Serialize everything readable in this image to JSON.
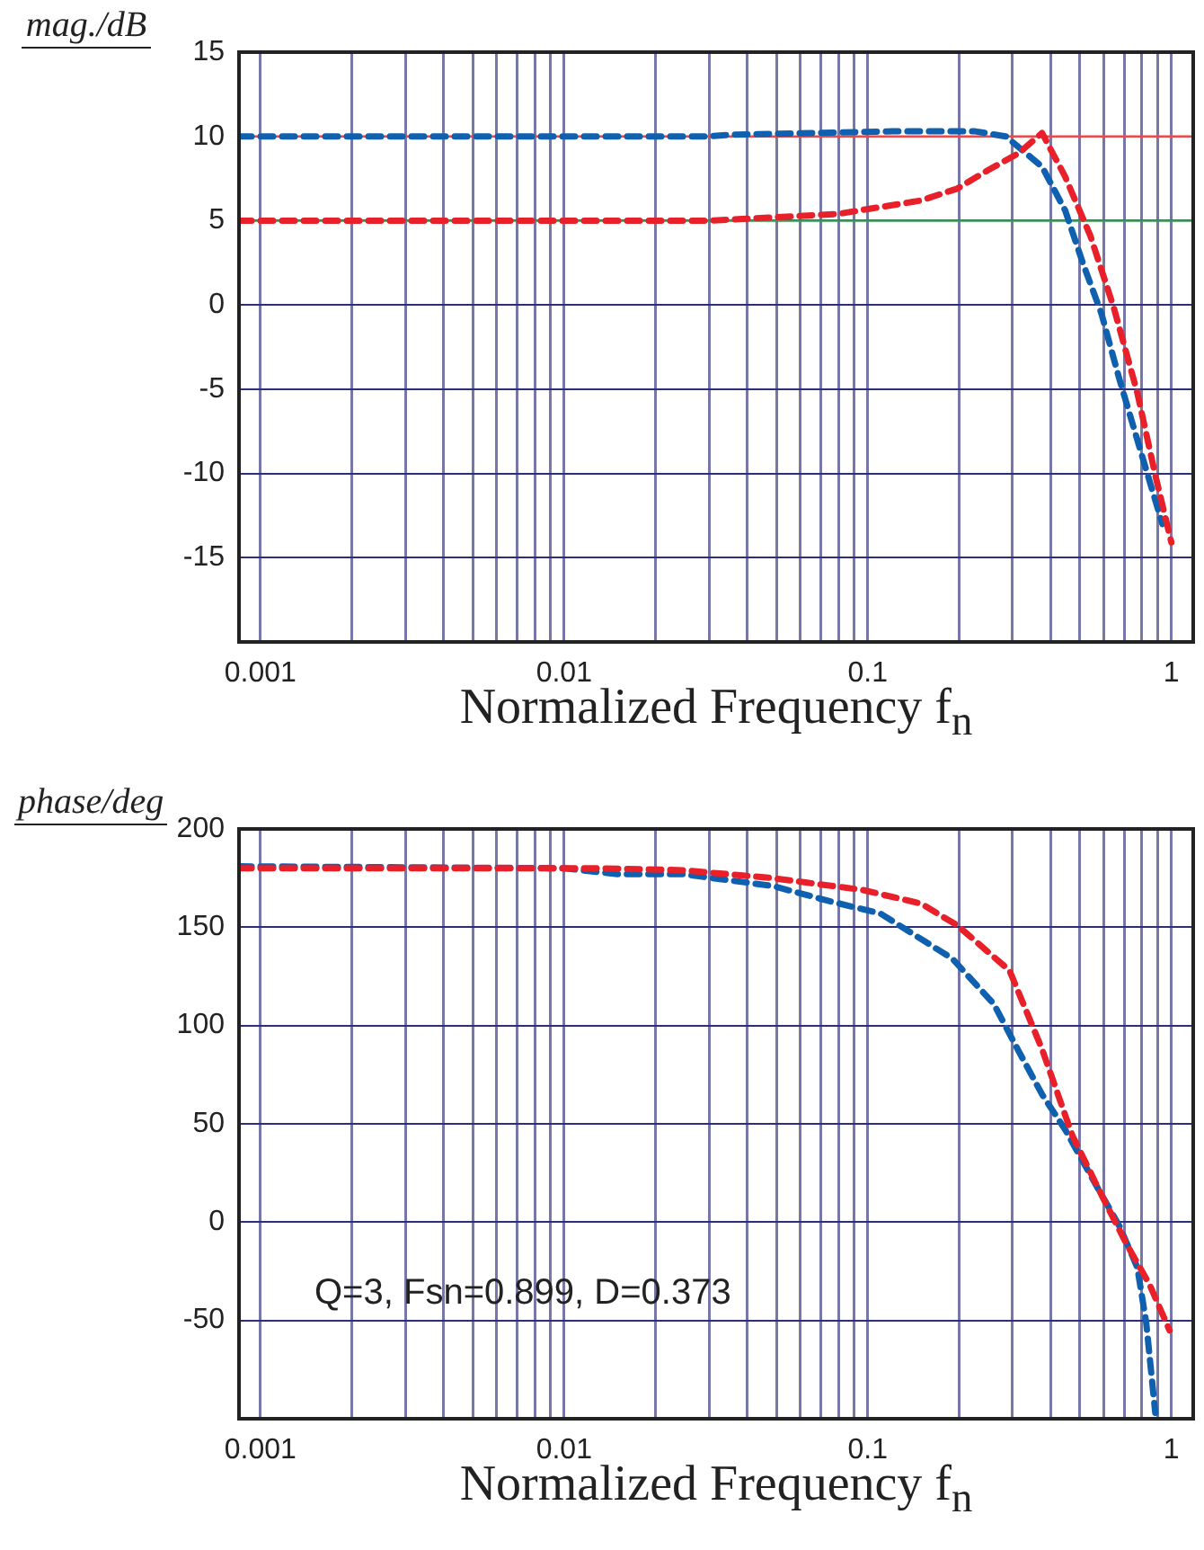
{
  "chart_data": [
    {
      "type": "line",
      "xlabel": "Normalized Frequency f$_{n}$",
      "ylabel": "mag./dB",
      "log": "x",
      "grid": true,
      "legend": false,
      "line_style": "dashed",
      "marker": "none",
      "xlim": [
        0.00085,
        1.18
      ],
      "xticks": [
        0.001,
        {
          "value": 0.002,
          "label": null
        },
        {
          "value": 0.003,
          "label": null
        },
        {
          "value": 0.004,
          "label": null
        },
        {
          "value": 0.005,
          "label": null
        },
        {
          "value": 0.006,
          "label": null
        },
        {
          "value": 0.007,
          "label": null
        },
        {
          "value": 0.008,
          "label": null
        },
        {
          "value": 0.009,
          "label": null
        },
        0.01,
        {
          "value": 0.02,
          "label": null
        },
        {
          "value": 0.03,
          "label": null
        },
        {
          "value": 0.04,
          "label": null
        },
        {
          "value": 0.05,
          "label": null
        },
        {
          "value": 0.06,
          "label": null
        },
        {
          "value": 0.07,
          "label": null
        },
        {
          "value": 0.08,
          "label": null
        },
        {
          "value": 0.09,
          "label": null
        },
        0.1,
        {
          "value": 0.2,
          "label": null
        },
        {
          "value": 0.3,
          "label": null
        },
        {
          "value": 0.4,
          "label": null
        },
        {
          "value": 0.5,
          "label": null
        },
        {
          "value": 0.6,
          "label": null
        },
        {
          "value": 0.7,
          "label": null
        },
        {
          "value": 0.8,
          "label": null
        },
        {
          "value": 0.9,
          "label": null
        },
        1
      ],
      "ylim": [
        -20,
        15
      ],
      "yticks": [
        -15,
        -10,
        -5,
        0,
        5,
        10,
        15
      ],
      "ref_lines": [
        {
          "axis": "y",
          "value": 10,
          "color": "#f04848"
        },
        {
          "axis": "y",
          "value": 5,
          "color": "#3a9a50"
        }
      ],
      "series": [
        {
          "color": "#e8202a",
          "x": [
            0.00085,
            0.01,
            0.03,
            0.0385,
            0.08,
            0.15,
            0.197,
            0.249,
            0.314,
            0.375,
            0.447,
            0.541,
            0.647,
            0.772,
            0.885,
            1.0
          ],
          "values": [
            5,
            5,
            5,
            5.1,
            5.4,
            6.2,
            6.9,
            8,
            9,
            10.2,
            7.6,
            4.1,
            -0.2,
            -5.2,
            -10.1,
            -14.1
          ]
        },
        {
          "color": "#1060b0",
          "x": [
            0.00085,
            0.01,
            0.03,
            0.0355,
            0.121,
            0.226,
            0.285,
            0.375,
            0.447,
            0.513,
            0.588,
            0.674,
            0.772,
            0.934
          ],
          "values": [
            10,
            10,
            10,
            10.1,
            10.3,
            10.3,
            10,
            8.2,
            5.6,
            2.4,
            -0.5,
            -4.4,
            -8,
            -13
          ]
        }
      ]
    },
    {
      "type": "line",
      "xlabel": "Normalized Frequency f$_{n}$",
      "ylabel": "phase/deg",
      "log": "x",
      "grid": true,
      "legend": false,
      "line_style": "dashed",
      "marker": "none",
      "xlim": [
        0.00085,
        1.18
      ],
      "xticks": [
        0.001,
        {
          "value": 0.002,
          "label": null
        },
        {
          "value": 0.003,
          "label": null
        },
        {
          "value": 0.004,
          "label": null
        },
        {
          "value": 0.005,
          "label": null
        },
        {
          "value": 0.006,
          "label": null
        },
        {
          "value": 0.007,
          "label": null
        },
        {
          "value": 0.008,
          "label": null
        },
        {
          "value": 0.009,
          "label": null
        },
        0.01,
        {
          "value": 0.02,
          "label": null
        },
        {
          "value": 0.03,
          "label": null
        },
        {
          "value": 0.04,
          "label": null
        },
        {
          "value": 0.05,
          "label": null
        },
        {
          "value": 0.06,
          "label": null
        },
        {
          "value": 0.07,
          "label": null
        },
        {
          "value": 0.08,
          "label": null
        },
        {
          "value": 0.09,
          "label": null
        },
        0.1,
        {
          "value": 0.2,
          "label": null
        },
        {
          "value": 0.3,
          "label": null
        },
        {
          "value": 0.4,
          "label": null
        },
        {
          "value": 0.5,
          "label": null
        },
        {
          "value": 0.6,
          "label": null
        },
        {
          "value": 0.7,
          "label": null
        },
        {
          "value": 0.8,
          "label": null
        },
        {
          "value": 0.9,
          "label": null
        },
        1
      ],
      "ylim": [
        -100,
        200
      ],
      "yticks": [
        -50,
        0,
        50,
        100,
        150,
        200
      ],
      "annotations": [
        "Q=3, Fsn=0.899, D=0.373"
      ],
      "series": [
        {
          "color": "#e8202a",
          "x": [
            0.00085,
            0.013,
            0.0246,
            0.0486,
            0.096,
            0.15,
            0.197,
            0.293,
            0.375,
            0.472,
            0.588,
            0.711,
            0.849,
            0.986
          ],
          "values": [
            180,
            180,
            179,
            175,
            169,
            162,
            151,
            128,
            88,
            44,
            14,
            -11,
            -32,
            -55
          ]
        },
        {
          "color": "#1060b0",
          "x": [
            0.00085,
            0.01,
            0.015,
            0.0246,
            0.0486,
            0.076,
            0.11,
            0.19,
            0.26,
            0.314,
            0.375,
            0.447,
            0.564,
            0.674,
            0.772,
            0.826,
            0.885
          ],
          "values": [
            181,
            180,
            177,
            177,
            171,
            163,
            157,
            134,
            111,
            87,
            65,
            47,
            19,
            -2,
            -23,
            -51,
            -97
          ]
        }
      ]
    }
  ]
}
